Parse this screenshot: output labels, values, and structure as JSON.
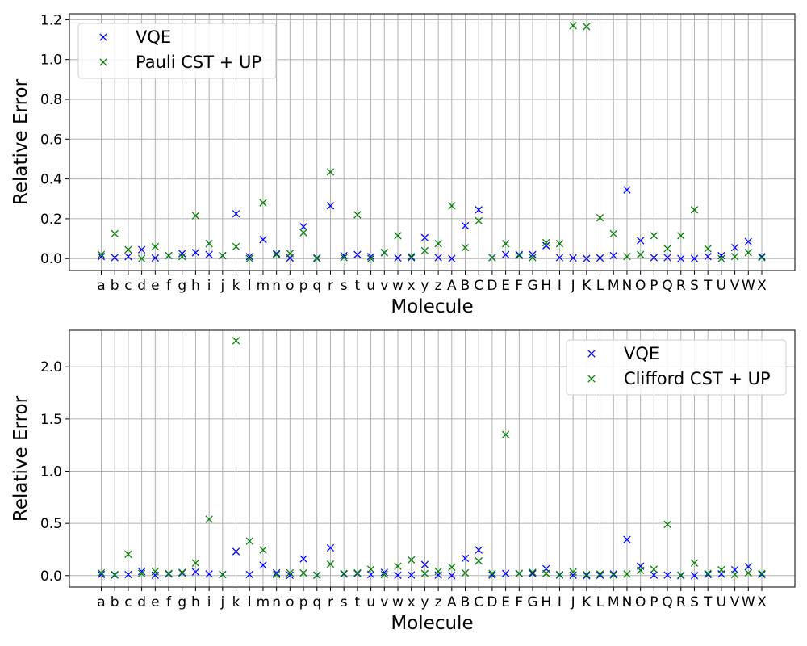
{
  "chart_data": [
    {
      "type": "scatter",
      "title": "",
      "xlabel": "Molecule",
      "ylabel": "Relative Error",
      "categories": [
        "a",
        "b",
        "c",
        "d",
        "e",
        "f",
        "g",
        "h",
        "i",
        "j",
        "k",
        "l",
        "m",
        "n",
        "o",
        "p",
        "q",
        "r",
        "s",
        "t",
        "u",
        "v",
        "w",
        "x",
        "y",
        "z",
        "A",
        "B",
        "C",
        "D",
        "E",
        "F",
        "G",
        "H",
        "I",
        "J",
        "K",
        "L",
        "M",
        "N",
        "O",
        "P",
        "Q",
        "R",
        "S",
        "T",
        "U",
        "V",
        "W",
        "X"
      ],
      "ylim": [
        -0.06,
        1.23
      ],
      "yticks": [
        0.0,
        0.2,
        0.4,
        0.6,
        0.8,
        1.0,
        1.2
      ],
      "ytick_labels": [
        "0.0",
        "0.2",
        "0.4",
        "0.6",
        "0.8",
        "1.0",
        "1.2"
      ],
      "grid": true,
      "legend_position": "top-left",
      "series": [
        {
          "name": "VQE",
          "color": "#0000ff",
          "marker": "x",
          "values": [
            0.01,
            0.005,
            0.01,
            0.045,
            0.003,
            0.015,
            0.025,
            0.03,
            0.02,
            0.015,
            0.225,
            0.01,
            0.095,
            0.025,
            0.003,
            0.16,
            0.003,
            0.265,
            0.015,
            0.02,
            0.01,
            0.03,
            0.003,
            0.005,
            0.105,
            0.005,
            0.0,
            0.165,
            0.245,
            0.005,
            0.02,
            0.02,
            0.02,
            0.065,
            0.005,
            0.003,
            0.0,
            0.003,
            0.015,
            0.345,
            0.09,
            0.005,
            0.005,
            0.0,
            0.0,
            0.01,
            0.015,
            0.055,
            0.085,
            0.01
          ]
        },
        {
          "name": "Pauli CST + UP",
          "color": "#008000",
          "marker": "x",
          "values": [
            0.02,
            0.125,
            0.045,
            0.0,
            0.06,
            0.015,
            0.01,
            0.215,
            0.075,
            0.015,
            0.06,
            0.0,
            0.28,
            0.02,
            0.025,
            0.13,
            0.0,
            0.435,
            0.005,
            0.22,
            0.0,
            0.03,
            0.115,
            0.01,
            0.04,
            0.075,
            0.265,
            0.055,
            0.19,
            0.005,
            0.075,
            0.015,
            0.005,
            0.08,
            0.075,
            1.17,
            1.165,
            0.205,
            0.125,
            0.01,
            0.02,
            0.115,
            0.05,
            0.115,
            0.245,
            0.05,
            0.0,
            0.01,
            0.03,
            0.005
          ]
        }
      ]
    },
    {
      "type": "scatter",
      "title": "",
      "xlabel": "Molecule",
      "ylabel": "Relative Error",
      "categories": [
        "a",
        "b",
        "c",
        "d",
        "e",
        "f",
        "g",
        "h",
        "i",
        "j",
        "k",
        "l",
        "m",
        "n",
        "o",
        "p",
        "q",
        "r",
        "s",
        "t",
        "u",
        "v",
        "w",
        "x",
        "y",
        "z",
        "A",
        "B",
        "C",
        "D",
        "E",
        "F",
        "G",
        "H",
        "I",
        "J",
        "K",
        "L",
        "M",
        "N",
        "O",
        "P",
        "Q",
        "R",
        "S",
        "T",
        "U",
        "V",
        "W",
        "X"
      ],
      "ylim": [
        -0.11,
        2.35
      ],
      "yticks": [
        0.0,
        0.5,
        1.0,
        1.5,
        2.0
      ],
      "ytick_labels": [
        "0.0",
        "0.5",
        "1.0",
        "1.5",
        "2.0"
      ],
      "grid": true,
      "legend_position": "top-right",
      "series": [
        {
          "name": "VQE",
          "color": "#0000ff",
          "marker": "x",
          "values": [
            0.01,
            0.005,
            0.01,
            0.04,
            0.003,
            0.015,
            0.025,
            0.035,
            0.015,
            0.01,
            0.23,
            0.01,
            0.1,
            0.025,
            0.003,
            0.16,
            0.003,
            0.265,
            0.015,
            0.02,
            0.01,
            0.03,
            0.003,
            0.005,
            0.105,
            0.005,
            0.0,
            0.165,
            0.245,
            0.005,
            0.02,
            0.02,
            0.02,
            0.065,
            0.005,
            0.003,
            0.0,
            0.003,
            0.015,
            0.345,
            0.09,
            0.005,
            0.005,
            0.0,
            0.0,
            0.01,
            0.015,
            0.055,
            0.085,
            0.01
          ]
        },
        {
          "name": "Clifford CST + UP",
          "color": "#008000",
          "marker": "x",
          "values": [
            0.025,
            0.01,
            0.205,
            0.02,
            0.04,
            0.02,
            0.03,
            0.12,
            0.54,
            0.01,
            2.25,
            0.33,
            0.245,
            0.01,
            0.025,
            0.025,
            0.005,
            0.11,
            0.02,
            0.025,
            0.06,
            0.01,
            0.09,
            0.15,
            0.02,
            0.04,
            0.08,
            0.025,
            0.14,
            0.02,
            1.35,
            0.02,
            0.03,
            0.02,
            0.01,
            0.035,
            0.01,
            0.015,
            0.005,
            0.015,
            0.05,
            0.06,
            0.49,
            0.005,
            0.12,
            0.02,
            0.055,
            0.01,
            0.025,
            0.02
          ]
        }
      ]
    }
  ]
}
